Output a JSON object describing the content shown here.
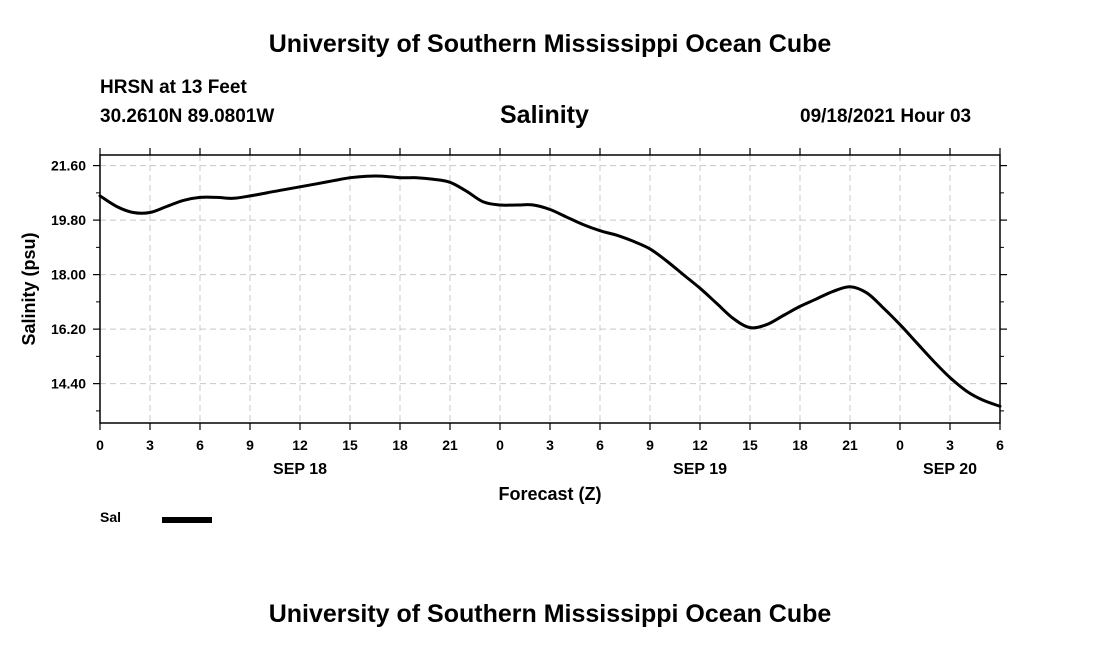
{
  "header": {
    "title_top": "University of Southern Mississippi Ocean Cube",
    "station": "HRSN at 13 Feet",
    "coords": "30.2610N  89.0801W",
    "variable": "Salinity",
    "datetime": "09/18/2021 Hour 03"
  },
  "footer": {
    "title_bottom": "University of Southern Mississippi Ocean Cube"
  },
  "legend": {
    "label": "Sal"
  },
  "chart_data": {
    "type": "line",
    "title": "Salinity",
    "xlabel": "Forecast (Z)",
    "ylabel": "Salinity (psu)",
    "xlim": [
      0,
      54
    ],
    "ylim": [
      13.1,
      21.95
    ],
    "y_ticks": [
      "21.60",
      "19.80",
      "18.00",
      "16.20",
      "14.40"
    ],
    "y_tick_values": [
      21.6,
      19.8,
      18.0,
      16.2,
      14.4
    ],
    "x_ticks": [
      "0",
      "3",
      "6",
      "9",
      "12",
      "15",
      "18",
      "21",
      "0",
      "3",
      "6",
      "9",
      "12",
      "15",
      "18",
      "21",
      "0",
      "3",
      "6"
    ],
    "x_tick_hours": [
      0,
      3,
      6,
      9,
      12,
      15,
      18,
      21,
      24,
      27,
      30,
      33,
      36,
      39,
      42,
      45,
      48,
      51,
      54
    ],
    "date_labels": [
      {
        "label": "SEP 18",
        "hour": 12
      },
      {
        "label": "SEP 19",
        "hour": 36
      },
      {
        "label": "SEP 20",
        "hour": 51
      }
    ],
    "grid": true,
    "series": [
      {
        "name": "Sal",
        "color": "#000000",
        "x": [
          0,
          1,
          2,
          3,
          4,
          5,
          6,
          7,
          8,
          9,
          10,
          11,
          12,
          13,
          14,
          15,
          16,
          17,
          18,
          19,
          20,
          21,
          22,
          23,
          24,
          25,
          26,
          27,
          28,
          29,
          30,
          31,
          32,
          33,
          34,
          35,
          36,
          37,
          38,
          39,
          40,
          41,
          42,
          43,
          44,
          45,
          46,
          47,
          48,
          49,
          50,
          51,
          52,
          53,
          54
        ],
        "values": [
          20.6,
          20.25,
          20.05,
          20.05,
          20.25,
          20.45,
          20.55,
          20.55,
          20.52,
          20.6,
          20.7,
          20.8,
          20.9,
          21.0,
          21.1,
          21.2,
          21.25,
          21.25,
          21.2,
          21.2,
          21.15,
          21.05,
          20.75,
          20.4,
          20.3,
          20.3,
          20.3,
          20.15,
          19.9,
          19.65,
          19.45,
          19.3,
          19.1,
          18.85,
          18.45,
          18.0,
          17.55,
          17.05,
          16.55,
          16.25,
          16.35,
          16.65,
          16.95,
          17.2,
          17.45,
          17.6,
          17.4,
          16.9,
          16.35,
          15.75,
          15.15,
          14.6,
          14.15,
          13.85,
          13.65
        ]
      }
    ]
  }
}
